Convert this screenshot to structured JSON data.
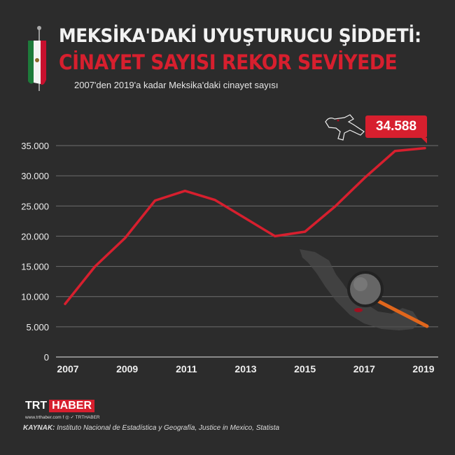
{
  "header": {
    "title_line1": "MEKSİKA'DAKİ UYUŞTURUCU ŞİDDETİ:",
    "title_line2": "CİNAYET SAYISI REKOR SEVİYEDE",
    "subtitle": "2007'den 2019'a kadar Meksika'daki cinayet sayısı",
    "flag_icon": "mexico-flag-icon"
  },
  "colors": {
    "accent": "#d71f2e",
    "background": "#2c2c2c",
    "grid": "#7a7a7a"
  },
  "chart_data": {
    "type": "line",
    "title": "",
    "xlabel": "",
    "ylabel": "",
    "x": [
      2007,
      2008,
      2009,
      2010,
      2011,
      2012,
      2013,
      2014,
      2015,
      2016,
      2017,
      2018,
      2019
    ],
    "values": [
      8800,
      15000,
      19700,
      25900,
      27500,
      26000,
      23000,
      20000,
      20750,
      24900,
      29700,
      34100,
      34588
    ],
    "xticks": [
      "2007",
      "2009",
      "2011",
      "2013",
      "2015",
      "2017",
      "2019"
    ],
    "yticks": [
      "0",
      "5.000",
      "10.000",
      "15.000",
      "20.000",
      "25.000",
      "30.000",
      "35.000"
    ],
    "ylim": [
      0,
      35000
    ],
    "grid": true,
    "annotation": "34.588",
    "line_color": "#d71f2e"
  },
  "footer": {
    "logo_trt": "TRT",
    "logo_haber": "HABER",
    "social": "www.trthaber.com  f  ◎  ✓ TRTHABER",
    "source_label": "KAYNAK:",
    "source_text": " Instituto Nacional de Estadística y Geografía, Justice in Mexico, Statista"
  }
}
